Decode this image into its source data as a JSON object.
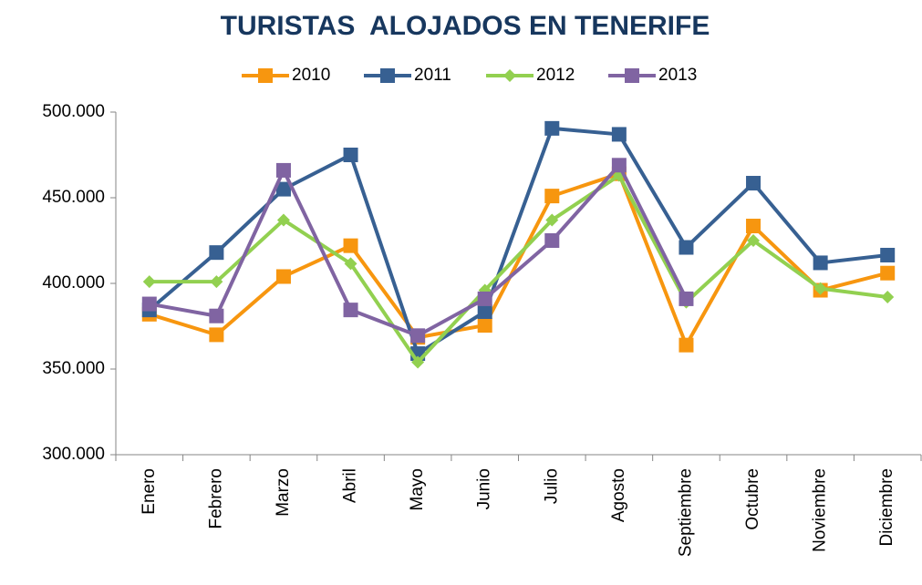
{
  "chart_data": {
    "type": "line",
    "title": "TURISTAS  ALOJADOS EN TENERIFE",
    "categories": [
      "Enero",
      "Febrero",
      "Marzo",
      "Abril",
      "Mayo",
      "Junio",
      "Julio",
      "Agosto",
      "Septiembre",
      "Octubre",
      "Noviembre",
      "Diciembre"
    ],
    "series": [
      {
        "name": "2010",
        "color": "#f7960f",
        "marker": "square",
        "values": [
          382000,
          370000,
          404000,
          422000,
          368500,
          375500,
          451000,
          464000,
          364000,
          433500,
          396000,
          406000
        ]
      },
      {
        "name": "2011",
        "color": "#376092",
        "marker": "square",
        "values": [
          384500,
          418000,
          455000,
          475000,
          359000,
          383500,
          490500,
          487000,
          421000,
          458500,
          412000,
          416500
        ]
      },
      {
        "name": "2012",
        "color": "#92d050",
        "marker": "diamond",
        "values": [
          401000,
          401000,
          437000,
          411500,
          354000,
          396000,
          437000,
          463000,
          389000,
          425000,
          397000,
          392000
        ]
      },
      {
        "name": "2013",
        "color": "#8064a2",
        "marker": "square",
        "values": [
          388000,
          381000,
          466000,
          384500,
          369500,
          391000,
          425000,
          469000,
          391000,
          null,
          null,
          null
        ]
      }
    ],
    "ylim": [
      300000,
      500000
    ],
    "yticks": [
      {
        "value": 300000,
        "label": "300.000"
      },
      {
        "value": 350000,
        "label": "350.000"
      },
      {
        "value": 400000,
        "label": "400.000"
      },
      {
        "value": 450000,
        "label": "450.000"
      },
      {
        "value": 500000,
        "label": "500.000"
      }
    ],
    "legend": "top",
    "grid": false
  }
}
